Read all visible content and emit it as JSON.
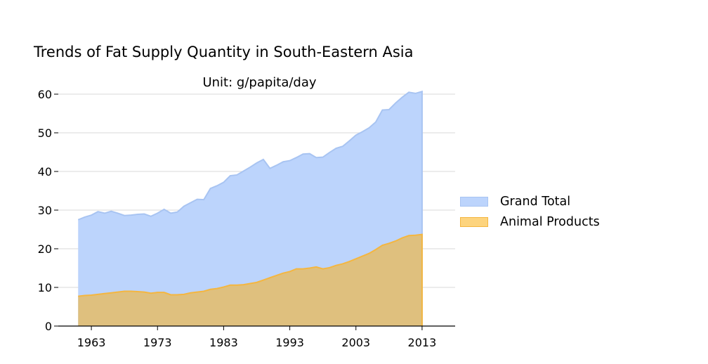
{
  "chart_data": {
    "type": "area",
    "title": "Trends of Fat Supply Quantity in South-Eastern Asia",
    "subtitle": "Unit: g/papita/day",
    "xlabel": "",
    "ylabel": "",
    "xlim": [
      1958,
      2018
    ],
    "ylim": [
      0,
      60
    ],
    "x_ticks": [
      1963,
      1973,
      1983,
      1993,
      2003,
      2013
    ],
    "y_ticks": [
      0,
      10,
      20,
      30,
      40,
      50,
      60
    ],
    "grid": "horizontal",
    "legend_position": "right",
    "x": [
      1961,
      1962,
      1963,
      1964,
      1965,
      1966,
      1967,
      1968,
      1969,
      1970,
      1971,
      1972,
      1973,
      1974,
      1975,
      1976,
      1977,
      1978,
      1979,
      1980,
      1981,
      1982,
      1983,
      1984,
      1985,
      1986,
      1987,
      1988,
      1989,
      1990,
      1991,
      1992,
      1993,
      1994,
      1995,
      1996,
      1997,
      1998,
      1999,
      2000,
      2001,
      2002,
      2003,
      2004,
      2005,
      2006,
      2007,
      2008,
      2009,
      2010,
      2011,
      2012,
      2013
    ],
    "series": [
      {
        "name": "Grand Total",
        "fill": "#bcd4fc",
        "stroke": "#a8c4f2",
        "values": [
          27.5,
          28.2,
          28.7,
          29.6,
          29.2,
          29.7,
          29.2,
          28.6,
          28.7,
          28.9,
          29.0,
          28.4,
          29.2,
          30.2,
          29.2,
          29.5,
          31.0,
          31.9,
          32.8,
          32.7,
          35.6,
          36.3,
          37.2,
          38.9,
          39.1,
          40.1,
          41.1,
          42.2,
          43.1,
          40.8,
          41.6,
          42.5,
          42.8,
          43.6,
          44.5,
          44.6,
          43.6,
          43.7,
          44.9,
          46.0,
          46.5,
          47.9,
          49.4,
          50.3,
          51.3,
          52.8,
          55.9,
          56.0,
          57.7,
          59.2,
          60.5,
          60.2,
          60.7
        ]
      },
      {
        "name": "Animal Products",
        "fill": "#dfc07e",
        "stroke": "#f4b640",
        "values": [
          7.7,
          7.9,
          8.0,
          8.2,
          8.4,
          8.6,
          8.8,
          9.0,
          9.0,
          8.9,
          8.8,
          8.5,
          8.7,
          8.7,
          8.1,
          8.1,
          8.2,
          8.6,
          8.8,
          9.0,
          9.5,
          9.7,
          10.1,
          10.6,
          10.6,
          10.7,
          11.0,
          11.3,
          11.9,
          12.5,
          13.1,
          13.7,
          14.1,
          14.8,
          14.8,
          15.0,
          15.3,
          14.8,
          15.1,
          15.7,
          16.1,
          16.7,
          17.4,
          18.1,
          18.8,
          19.8,
          20.9,
          21.4,
          22.0,
          22.8,
          23.4,
          23.5,
          23.7
        ]
      }
    ]
  }
}
